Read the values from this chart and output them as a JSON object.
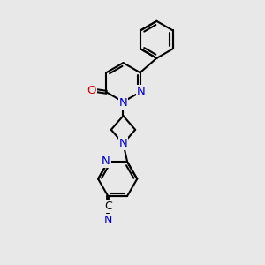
{
  "bg_color": "#e8e8e8",
  "bond_color": "#000000",
  "N_color": "#0000cc",
  "O_color": "#cc0000",
  "line_width": 1.5,
  "font_size": 9.5,
  "xlim": [
    0,
    10
  ],
  "ylim": [
    0,
    14
  ]
}
